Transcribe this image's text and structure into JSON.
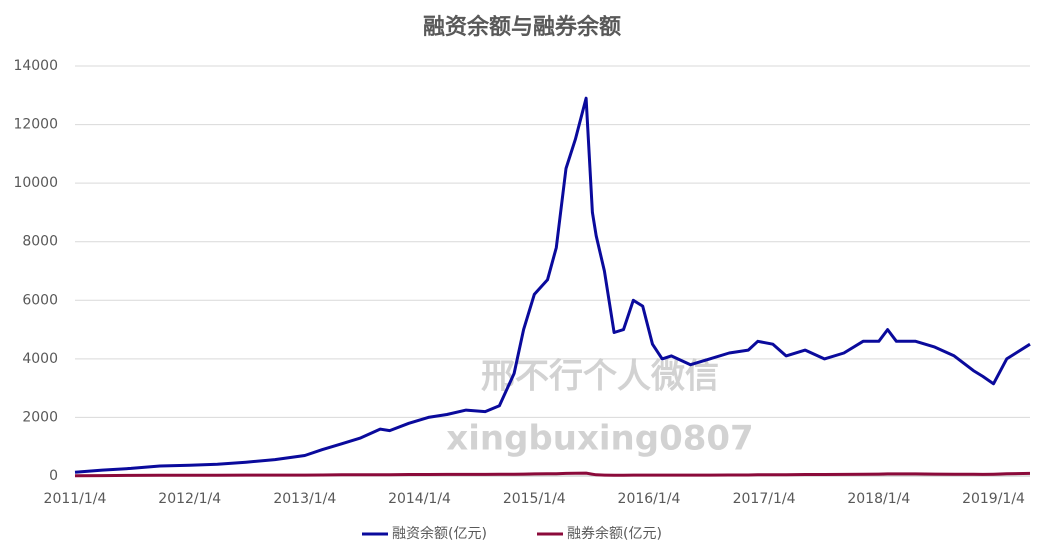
{
  "chart_data": {
    "type": "line",
    "title": "融资余额与融券余额",
    "x": [
      "2011/1/4",
      "2011/4/1",
      "2011/7/1",
      "2011/10/1",
      "2012/1/4",
      "2012/4/1",
      "2012/7/1",
      "2012/10/1",
      "2013/1/4",
      "2013/3/1",
      "2013/5/1",
      "2013/7/1",
      "2013/9/1",
      "2013/10/1",
      "2013/12/1",
      "2014/2/1",
      "2014/4/1",
      "2014/6/1",
      "2014/8/1",
      "2014/9/15",
      "2014/11/1",
      "2014/12/1",
      "2015/1/4",
      "2015/2/15",
      "2015/3/15",
      "2015/4/15",
      "2015/5/15",
      "2015/6/18",
      "2015/7/8",
      "2015/7/20",
      "2015/8/15",
      "2015/9/15",
      "2015/10/15",
      "2015/11/15",
      "2015/12/15",
      "2016/1/15",
      "2016/2/15",
      "2016/3/15",
      "2016/5/15",
      "2016/7/15",
      "2016/9/15",
      "2016/11/15",
      "2016/12/15",
      "2017/2/1",
      "2017/3/15",
      "2017/5/15",
      "2017/7/15",
      "2017/9/15",
      "2017/11/15",
      "2018/1/4",
      "2018/2/1",
      "2018/3/1",
      "2018/5/1",
      "2018/7/1",
      "2018/9/1",
      "2018/11/1",
      "2018/12/1",
      "2019/1/4",
      "2019/2/15",
      "2019/4/30"
    ],
    "series": [
      {
        "name": "融资余额(亿元)",
        "color": "#0a0a9c",
        "values": [
          130,
          200,
          260,
          340,
          370,
          400,
          470,
          560,
          700,
          900,
          1100,
          1300,
          1600,
          1550,
          1800,
          2000,
          2100,
          2250,
          2200,
          2400,
          3500,
          5000,
          6200,
          6700,
          7800,
          10500,
          11500,
          12900,
          9000,
          8200,
          7000,
          4900,
          5000,
          6000,
          5800,
          4500,
          4000,
          4100,
          3800,
          4000,
          4200,
          4300,
          4600,
          4500,
          4100,
          4300,
          4000,
          4200,
          4600,
          4600,
          5000,
          4600,
          4600,
          4400,
          4100,
          3600,
          3400,
          3150,
          4000,
          4500
        ]
      },
      {
        "name": "融券余额(亿元)",
        "color": "#8b0a3a",
        "values": [
          10,
          15,
          20,
          25,
          25,
          25,
          30,
          30,
          30,
          35,
          40,
          40,
          45,
          45,
          50,
          50,
          55,
          55,
          55,
          60,
          60,
          65,
          70,
          75,
          80,
          90,
          95,
          100,
          60,
          40,
          30,
          25,
          25,
          30,
          30,
          30,
          30,
          30,
          30,
          30,
          35,
          35,
          40,
          45,
          45,
          50,
          50,
          55,
          60,
          65,
          70,
          70,
          70,
          65,
          60,
          60,
          55,
          60,
          80,
          90
        ]
      }
    ],
    "xlim": [
      "2011/1/4",
      "2019/4/30"
    ],
    "xticks": [
      "2011/1/4",
      "2012/1/4",
      "2013/1/4",
      "2014/1/4",
      "2015/1/4",
      "2016/1/4",
      "2017/1/4",
      "2018/1/4",
      "2019/1/4"
    ],
    "ylim": [
      0,
      14000
    ],
    "yticks": [
      0,
      2000,
      4000,
      6000,
      8000,
      10000,
      12000,
      14000
    ],
    "grid": true,
    "legend": "bottom",
    "annotations": [
      "邢不行个人微信",
      "xingbuxing0807"
    ]
  }
}
